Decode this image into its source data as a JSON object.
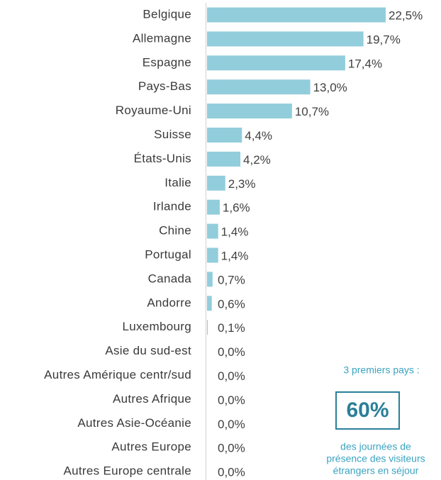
{
  "chart_data": {
    "type": "bar",
    "orientation": "horizontal",
    "categories": [
      "Belgique",
      "Allemagne",
      "Espagne",
      "Pays-Bas",
      "Royaume-Uni",
      "Suisse",
      "États-Unis",
      "Italie",
      "Irlande",
      "Chine",
      "Portugal",
      "Canada",
      "Andorre",
      "Luxembourg",
      "Asie du sud-est",
      "Autres Amérique centr/sud",
      "Autres Afrique",
      "Autres Asie-Océanie",
      "Autres Europe",
      "Autres Europe centrale"
    ],
    "values": [
      22.5,
      19.7,
      17.4,
      13.0,
      10.7,
      4.4,
      4.2,
      2.3,
      1.6,
      1.4,
      1.4,
      0.7,
      0.6,
      0.1,
      0.0,
      0.0,
      0.0,
      0.0,
      0.0,
      0.0
    ],
    "value_labels": [
      "22,5%",
      "19,7%",
      "17,4%",
      "13,0%",
      "10,7%",
      "4,4%",
      "4,2%",
      "2,3%",
      "1,6%",
      "1,4%",
      "1,4%",
      "0,7%",
      "0,6%",
      "0,1%",
      "0,0%",
      "0,0%",
      "0,0%",
      "0,0%",
      "0,0%",
      "0,0%"
    ],
    "color": "#92cddc",
    "annotation": {
      "header": "3 premiers pays :",
      "highlight": "60%",
      "lines": [
        "des journées de",
        "présence des visiteurs",
        "étrangers en séjour"
      ]
    }
  }
}
